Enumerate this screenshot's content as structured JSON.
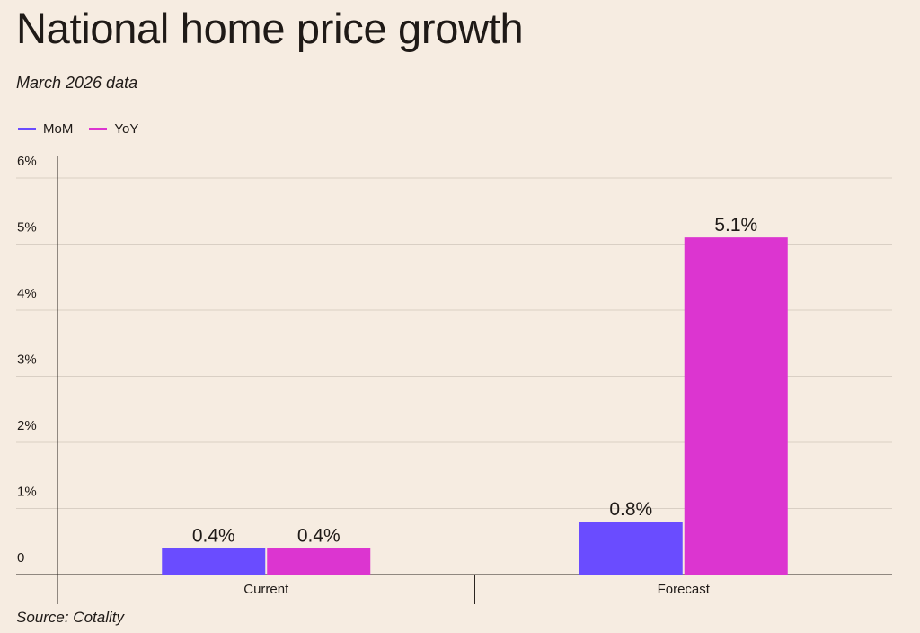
{
  "title": "National home price growth",
  "subtitle": "March 2026 data",
  "source": "Source: Cotality",
  "legend": [
    {
      "label": "MoM",
      "color": "#6a4cff"
    },
    {
      "label": "YoY",
      "color": "#dc35d0"
    }
  ],
  "chart_data": {
    "type": "bar",
    "categories": [
      "Current",
      "Forecast"
    ],
    "series": [
      {
        "name": "MoM",
        "values": [
          0.4,
          0.8
        ],
        "color": "#6a4cff"
      },
      {
        "name": "YoY",
        "values": [
          0.4,
          5.1
        ],
        "color": "#dc35d0"
      }
    ],
    "data_labels": [
      [
        "0.4%",
        "0.8%"
      ],
      [
        "0.4%",
        "5.1%"
      ]
    ],
    "yticks": [
      0,
      1,
      2,
      3,
      4,
      5,
      6
    ],
    "ytick_labels": [
      "0",
      "1%",
      "2%",
      "3%",
      "4%",
      "5%",
      "6%"
    ],
    "ylim": [
      0,
      6.2
    ],
    "grid": true,
    "legend_position": "top-left"
  }
}
